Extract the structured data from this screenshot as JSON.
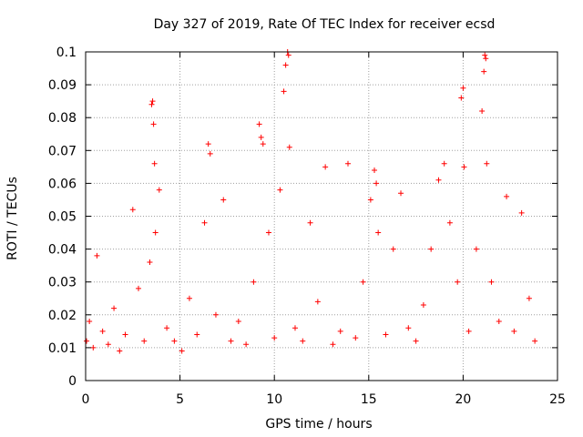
{
  "chart_data": {
    "type": "scatter",
    "title": "Day 327 of 2019, Rate Of TEC Index for receiver ecsd",
    "xlabel": "GPS time / hours",
    "ylabel": "ROTI / TECUs",
    "xlim": [
      0,
      25
    ],
    "ylim": [
      0,
      0.1
    ],
    "x_ticks": [
      "0",
      "5",
      "10",
      "15",
      "20",
      "25"
    ],
    "y_ticks": [
      "0",
      "0.01",
      "0.02",
      "0.03",
      "0.04",
      "0.05",
      "0.06",
      "0.07",
      "0.08",
      "0.09",
      "0.1"
    ],
    "grid": true,
    "marker": "+",
    "series_color": "#ff0000",
    "series": [
      {
        "x": [
          0.05,
          0.2,
          0.4,
          0.6,
          0.9,
          1.2,
          1.5,
          1.8,
          2.1,
          2.5,
          2.8,
          3.1,
          3.4,
          3.5,
          3.55,
          3.6,
          3.65,
          3.7,
          3.9,
          4.3,
          4.7,
          5.1,
          5.5,
          5.9,
          6.3,
          6.5,
          6.6,
          6.9,
          7.3,
          7.7,
          8.1,
          8.5,
          8.9,
          9.2,
          9.3,
          9.4,
          9.7,
          10.0,
          10.3,
          10.5,
          10.6,
          10.7,
          10.75,
          10.8,
          11.1,
          11.5,
          11.9,
          12.3,
          12.7,
          13.1,
          13.5,
          13.9,
          14.3,
          14.7,
          15.1,
          15.3,
          15.4,
          15.5,
          15.9,
          16.3,
          16.7,
          17.1,
          17.5,
          17.9,
          18.3,
          18.7,
          19.0,
          19.3,
          19.7,
          19.9,
          20.0,
          20.05,
          20.3,
          20.7,
          21.0,
          21.1,
          21.15,
          21.2,
          21.25,
          21.5,
          21.9,
          22.3,
          22.7,
          23.1,
          23.5,
          23.8
        ],
        "y": [
          0.012,
          0.018,
          0.01,
          0.038,
          0.015,
          0.011,
          0.022,
          0.009,
          0.014,
          0.052,
          0.028,
          0.012,
          0.036,
          0.084,
          0.085,
          0.078,
          0.066,
          0.045,
          0.058,
          0.016,
          0.012,
          0.009,
          0.025,
          0.014,
          0.048,
          0.072,
          0.069,
          0.02,
          0.055,
          0.012,
          0.018,
          0.011,
          0.03,
          0.078,
          0.074,
          0.072,
          0.045,
          0.013,
          0.058,
          0.088,
          0.096,
          0.1,
          0.099,
          0.071,
          0.016,
          0.012,
          0.048,
          0.024,
          0.065,
          0.011,
          0.015,
          0.066,
          0.013,
          0.03,
          0.055,
          0.064,
          0.06,
          0.045,
          0.014,
          0.04,
          0.057,
          0.016,
          0.012,
          0.023,
          0.04,
          0.061,
          0.066,
          0.048,
          0.03,
          0.086,
          0.089,
          0.065,
          0.015,
          0.04,
          0.082,
          0.094,
          0.099,
          0.098,
          0.066,
          0.03,
          0.018,
          0.056,
          0.015,
          0.051,
          0.025,
          0.012
        ]
      }
    ]
  }
}
